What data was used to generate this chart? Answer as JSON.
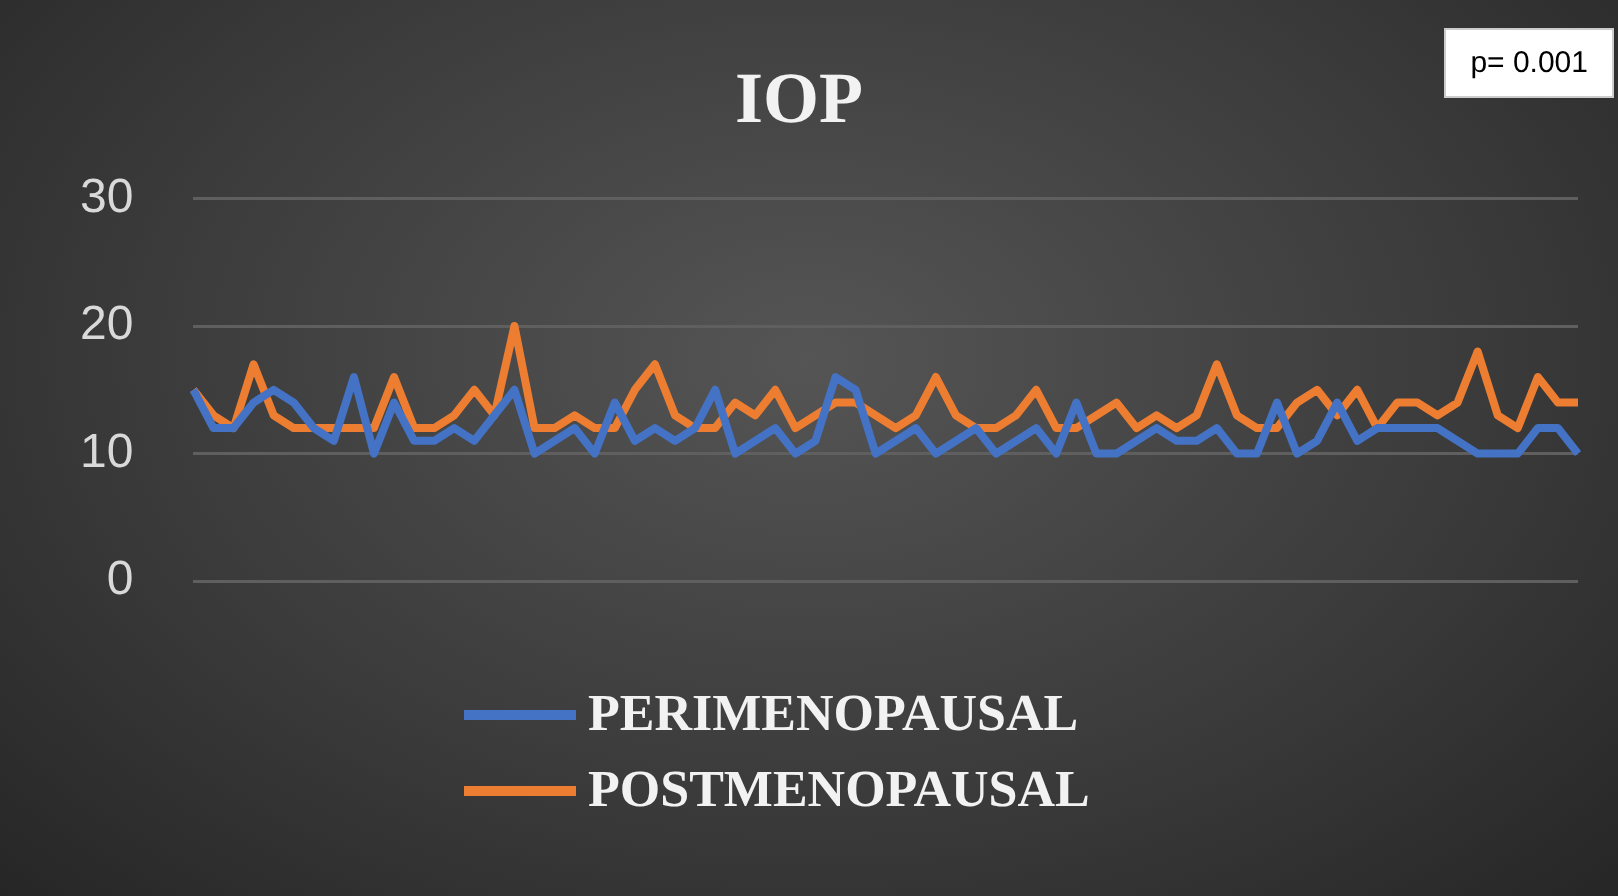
{
  "chart_data": {
    "type": "line",
    "title": "IOP",
    "categories": [
      null,
      null,
      null,
      null,
      null,
      null,
      null,
      null,
      null,
      null,
      null,
      null,
      null,
      null,
      null,
      null,
      null,
      null,
      null,
      null,
      null,
      null,
      null,
      null,
      null,
      null,
      null,
      null,
      null,
      null,
      null,
      null,
      null,
      null,
      null,
      null,
      null,
      null,
      null,
      null,
      null,
      null,
      null,
      null,
      null,
      null,
      null,
      null,
      null,
      null,
      null,
      null,
      null,
      null,
      null,
      null,
      null,
      null,
      null,
      null,
      null,
      null,
      null,
      null,
      null,
      null,
      null,
      null,
      null,
      null
    ],
    "series": [
      {
        "name": "PERIMENOPAUSAL",
        "color": "#4472c4",
        "values": [
          15,
          12,
          12,
          14,
          15,
          14,
          12,
          11,
          16,
          10,
          14,
          11,
          11,
          12,
          11,
          13,
          15,
          10,
          11,
          12,
          10,
          14,
          11,
          12,
          11,
          12,
          15,
          10,
          11,
          12,
          10,
          11,
          16,
          15,
          10,
          11,
          12,
          10,
          11,
          12,
          10,
          11,
          12,
          10,
          14,
          10,
          10,
          11,
          12,
          11,
          11,
          12,
          10,
          10,
          14,
          10,
          11,
          14,
          11,
          12,
          12,
          12,
          12,
          11,
          10,
          10,
          10,
          12,
          12,
          10
        ]
      },
      {
        "name": "POSTMENOPAUSAL",
        "color": "#ed7d31",
        "values": [
          15,
          13,
          12,
          17,
          13,
          12,
          12,
          12,
          12,
          12,
          16,
          12,
          12,
          13,
          15,
          13,
          20,
          12,
          12,
          13,
          12,
          12,
          15,
          17,
          13,
          12,
          12,
          14,
          13,
          15,
          12,
          13,
          14,
          14,
          13,
          12,
          13,
          16,
          13,
          12,
          12,
          13,
          15,
          12,
          12,
          13,
          14,
          12,
          13,
          12,
          13,
          17,
          13,
          12,
          12,
          14,
          15,
          13,
          15,
          12,
          14,
          14,
          13,
          14,
          18,
          13,
          12,
          16,
          14,
          14
        ]
      }
    ],
    "ylim": [
      0,
      30
    ],
    "yticks": [
      0,
      10,
      20,
      30
    ],
    "grid": "y",
    "legend": "bottom",
    "marker": "none",
    "line_style": "solid",
    "tick_labels": "y",
    "annotations": [
      "p= 0.001"
    ]
  }
}
